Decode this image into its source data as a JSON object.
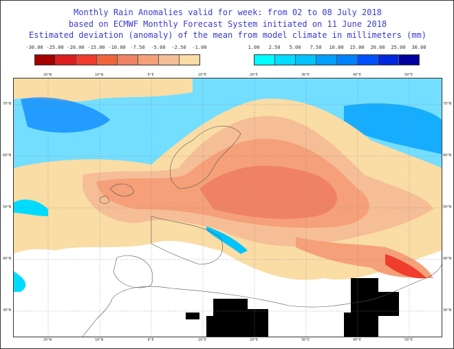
{
  "titles": [
    "Monthly Rain Anomalies valid for week: from 02 to 08 July 2018",
    "based on ECMWF Monthly Forecast System initiated on 11 June 2018",
    "Estimated deviation (anomaly) of the mean from model climate in millimeters (mm)"
  ],
  "legend_negative": {
    "labels": [
      "-30.00",
      "-25.00",
      "-20.00",
      "-15.00",
      "-10.00",
      "-7.50",
      "-5.00",
      "-2.50",
      "-1.00"
    ],
    "colors": [
      "#a50000",
      "#dc1e1e",
      "#f03c2d",
      "#f0643c",
      "#f08264",
      "#f5a078",
      "#f5be96",
      "#fadca5"
    ]
  },
  "legend_positive": {
    "labels": [
      "1.00",
      "2.50",
      "5.00",
      "7.50",
      "10.00",
      "15.00",
      "20.00",
      "25.00",
      "30.00"
    ],
    "colors": [
      "#00ffff",
      "#00dcff",
      "#00c3ff",
      "#00a0ff",
      "#0082ff",
      "#0050ff",
      "#0028dc",
      "#0000a0"
    ]
  },
  "lon_labels": [
    "20°W",
    "10°W",
    "0°E",
    "10°E",
    "20°E",
    "30°E",
    "40°E",
    "50°E"
  ],
  "lat_labels": [
    "70°N",
    "60°N",
    "50°N",
    "40°N",
    "30°N"
  ]
}
